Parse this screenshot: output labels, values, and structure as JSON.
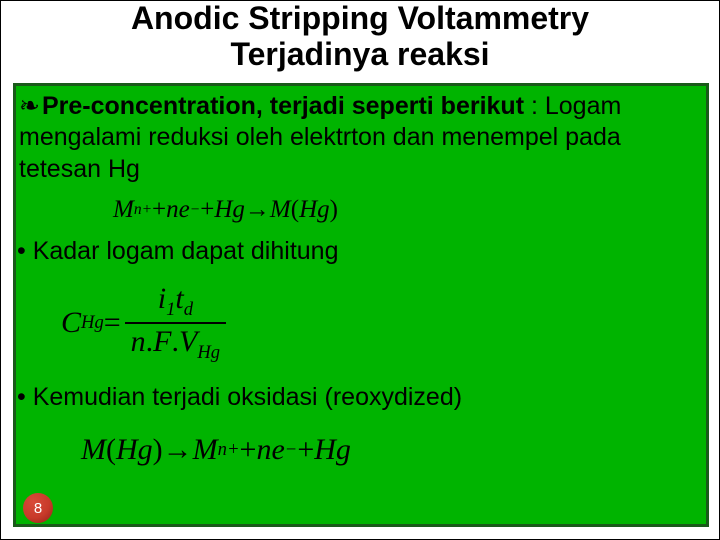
{
  "title": {
    "line1": "Anodic Stripping Voltammetry",
    "line2": "Terjadinya reaksi",
    "fontsize": 32,
    "color": "#000000",
    "weight": 700
  },
  "content_box": {
    "background_color": "#00b400",
    "border_color": "#1a5a1a",
    "border_width": 3
  },
  "para1": {
    "lead_symbol": "❧",
    "bold_segment": "Pre-concentration, terjadi seperti berikut",
    "rest": " : Logam mengalami reduksi oleh elektrton dan menempel pada tetesan Hg",
    "fontsize": 25
  },
  "equation1": {
    "fontsize": 25,
    "tokens": {
      "M1": "M",
      "sup_n_plus": "n+",
      "plus1": " + ",
      "n": "n",
      "e": "e",
      "sup_minus": "−",
      "plus2": " + ",
      "Hg1": "Hg",
      "arrow": " → ",
      "M2": "M",
      "lpar": "(",
      "Hg2": "Hg",
      "rpar": ")"
    }
  },
  "bullet2": {
    "text": "•  Kadar logam dapat dihitung",
    "fontsize": 25
  },
  "equation2": {
    "fontsize": 30,
    "lhs": {
      "C": "C",
      "sub": "Hg",
      "eq": " = "
    },
    "num": {
      "i": "i",
      "i_sub": "1",
      "t": "t",
      "t_sub": "d"
    },
    "den": {
      "n": "n",
      "dot1": ".",
      "F": "F",
      "dot2": ".",
      "V": "V",
      "V_sub": "Hg"
    }
  },
  "bullet3": {
    "text": "•  Kemudian terjadi oksidasi (reoxydized)",
    "fontsize": 25
  },
  "equation3": {
    "fontsize": 30,
    "tokens": {
      "M1": "M",
      "lpar": "(",
      "Hg1": "Hg",
      "rpar": ")",
      "arrow": " → ",
      "M2": "M",
      "sup_n_plus": "n+",
      "plus1": " + ",
      "n": "n",
      "e": "e",
      "sup_minus": "−",
      "plus2": " + ",
      "Hg2": "Hg"
    }
  },
  "page_badge": {
    "number": "8",
    "fontsize": 15,
    "fg": "#ffffff",
    "bg": "#c83a2a"
  }
}
